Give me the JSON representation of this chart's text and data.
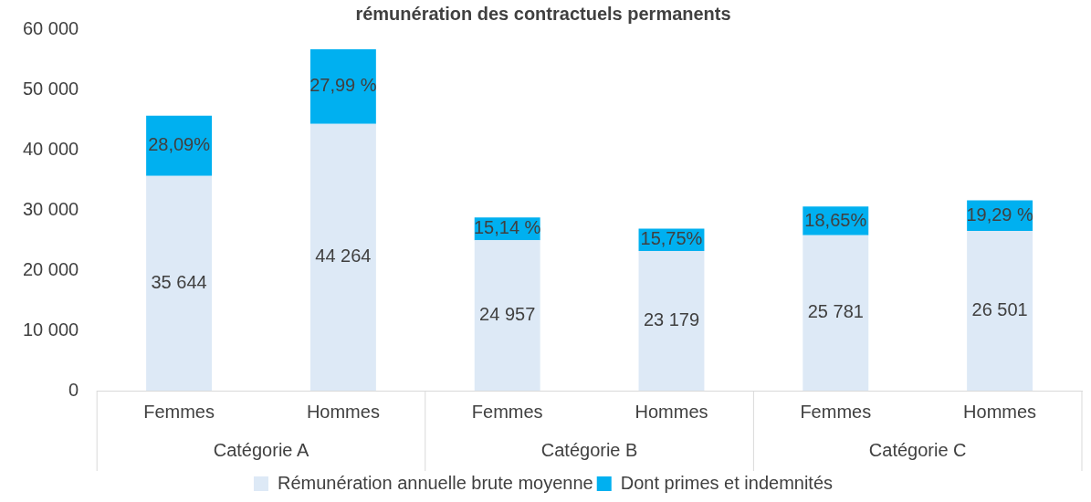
{
  "chart_data": {
    "type": "bar",
    "stacked": true,
    "title": "rémunération des contractuels permanents",
    "categories": [
      "Femmes",
      "Hommes",
      "Femmes",
      "Hommes",
      "Femmes",
      "Hommes"
    ],
    "annotations": [
      "Catégorie A",
      "Catégorie B",
      "Catégorie C",
      "28,09%",
      "27,99 %",
      "15,14 %",
      "15,75%",
      "18,65%",
      "19,29 %"
    ],
    "series": [
      {
        "name": "Rémunération annuelle brute moyenne",
        "color": "#dde9f6",
        "values": [
          35644,
          44264,
          24957,
          23179,
          25781,
          26501
        ],
        "value_labels": [
          "35 644",
          "44 264",
          "24 957",
          "23 179",
          "25 781",
          "26 501"
        ]
      },
      {
        "name": "Dont primes et indemnités",
        "color": "#00b0f0",
        "values": [
          10000,
          12400,
          3800,
          3700,
          4800,
          5100
        ]
      }
    ],
    "ylim": [
      0,
      60000
    ],
    "yticks": [
      {
        "value": 0,
        "label": "0"
      },
      {
        "value": 10000,
        "label": "10 000"
      },
      {
        "value": 20000,
        "label": "20 000"
      },
      {
        "value": 30000,
        "label": "30 000"
      },
      {
        "value": 40000,
        "label": "40 000"
      },
      {
        "value": 50000,
        "label": "50 000"
      },
      {
        "value": 60000,
        "label": "60 000"
      }
    ],
    "grid": false,
    "legend": "bottom"
  }
}
